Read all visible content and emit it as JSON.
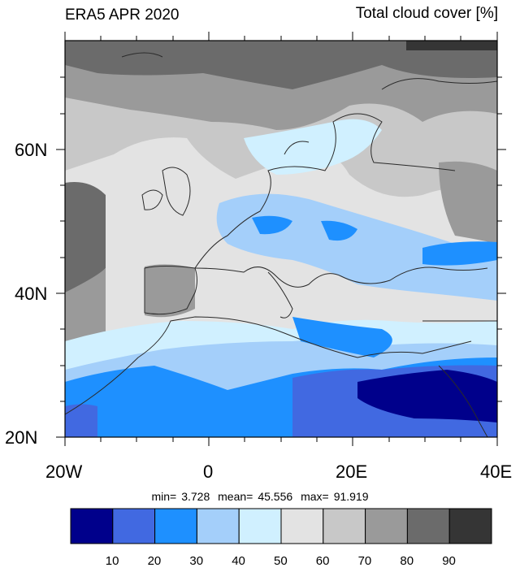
{
  "titles": {
    "left": "ERA5 APR 2020",
    "right": "Total cloud cover [%]"
  },
  "axes": {
    "lat_ticks": [
      "60N",
      "40N",
      "20N"
    ],
    "lon_ticks": [
      "20W",
      "0",
      "20E",
      "40E"
    ]
  },
  "stats": {
    "min_label": "min=",
    "min_value": "3.728",
    "mean_label": "mean=",
    "mean_value": "45.556",
    "max_label": "max=",
    "max_value": "91.919"
  },
  "colorbar": {
    "levels": [
      "10",
      "20",
      "30",
      "40",
      "50",
      "60",
      "70",
      "80",
      "90"
    ],
    "colors": [
      "#00008b",
      "#4169e1",
      "#1e90ff",
      "#a4cffa",
      "#d0f0ff",
      "#e3e3e3",
      "#c8c8c8",
      "#9a9a9a",
      "#6b6b6b",
      "#353535"
    ]
  },
  "chart_data": {
    "type": "heatmap",
    "title": "ERA5 APR 2020",
    "subtitle": "Total cloud cover [%]",
    "x_range": [
      -20,
      40
    ],
    "y_range": [
      20,
      75
    ],
    "x_ticks": [
      "20W",
      "0",
      "20E",
      "40E"
    ],
    "y_ticks": [
      "60N",
      "40N",
      "20N"
    ],
    "levels": [
      10,
      20,
      30,
      40,
      50,
      60,
      70,
      80,
      90
    ],
    "min": 3.728,
    "mean": 45.556,
    "max": 91.919
  }
}
